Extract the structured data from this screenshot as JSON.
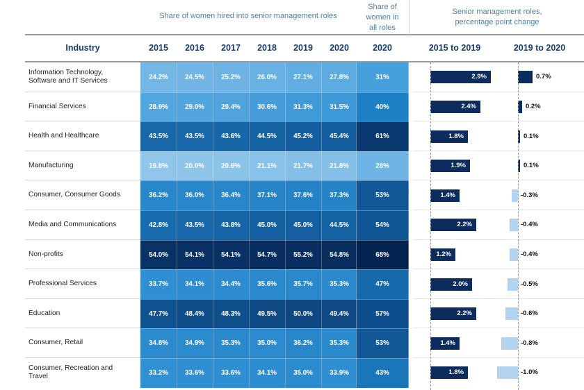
{
  "headers": {
    "share_hired": "Share of women hired into senior management roles",
    "share_all": [
      "Share of",
      "women in",
      "all roles"
    ],
    "pp_change": [
      "Senior management roles,",
      "percentage point change"
    ],
    "industry": "Industry",
    "years": [
      "2015",
      "2016",
      "2017",
      "2018",
      "2019",
      "2020"
    ],
    "all_year": "2020",
    "change_1": "2015 to 2019",
    "change_2": "2019 to 2020"
  },
  "colors": {
    "header_text": "#4f81a8",
    "bold_header": "#173c6c",
    "dark_bar": "#0b2c5c",
    "light_bar": "#b3d3ee"
  },
  "chart_data": {
    "type": "table",
    "rows": [
      {
        "industry": [
          "Information Technology,",
          "Software and IT Services"
        ],
        "values": [
          "24.2%",
          "24.5%",
          "25.2%",
          "26.0%",
          "27.1%",
          "27.8%"
        ],
        "all_roles": "31%",
        "change_2015_2019": 2.9,
        "change_2015_2019_label": "2.9%",
        "change_2019_2020": 0.7,
        "change_2019_2020_label": "0.7%"
      },
      {
        "industry": [
          "Financial Services"
        ],
        "values": [
          "28.9%",
          "29.0%",
          "29.4%",
          "30.6%",
          "31.3%",
          "31.5%"
        ],
        "all_roles": "40%",
        "change_2015_2019": 2.4,
        "change_2015_2019_label": "2.4%",
        "change_2019_2020": 0.2,
        "change_2019_2020_label": "0.2%"
      },
      {
        "industry": [
          "Health and Healthcare"
        ],
        "values": [
          "43.5%",
          "43.5%",
          "43.6%",
          "44.5%",
          "45.2%",
          "45.4%"
        ],
        "all_roles": "61%",
        "change_2015_2019": 1.8,
        "change_2015_2019_label": "1.8%",
        "change_2019_2020": 0.1,
        "change_2019_2020_label": "0.1%"
      },
      {
        "industry": [
          "Manufacturing"
        ],
        "values": [
          "19.8%",
          "20.0%",
          "20.6%",
          "21.1%",
          "21.7%",
          "21.8%"
        ],
        "all_roles": "28%",
        "change_2015_2019": 1.9,
        "change_2015_2019_label": "1.9%",
        "change_2019_2020": 0.1,
        "change_2019_2020_label": "0.1%"
      },
      {
        "industry": [
          "Consumer, Consumer Goods"
        ],
        "values": [
          "36.2%",
          "36.0%",
          "36.4%",
          "37.1%",
          "37.6%",
          "37.3%"
        ],
        "all_roles": "53%",
        "change_2015_2019": 1.4,
        "change_2015_2019_label": "1.4%",
        "change_2019_2020": -0.3,
        "change_2019_2020_label": "-0.3%"
      },
      {
        "industry": [
          "Media and Communications"
        ],
        "values": [
          "42.8%",
          "43.5%",
          "43.8%",
          "45.0%",
          "45.0%",
          "44.5%"
        ],
        "all_roles": "54%",
        "change_2015_2019": 2.2,
        "change_2015_2019_label": "2.2%",
        "change_2019_2020": -0.4,
        "change_2019_2020_label": "-0.4%"
      },
      {
        "industry": [
          "Non-profits"
        ],
        "values": [
          "54.0%",
          "54.1%",
          "54.1%",
          "54.7%",
          "55.2%",
          "54.8%"
        ],
        "all_roles": "68%",
        "change_2015_2019": 1.2,
        "change_2015_2019_label": "1.2%",
        "change_2019_2020": -0.4,
        "change_2019_2020_label": "-0.4%"
      },
      {
        "industry": [
          "Professional Services"
        ],
        "values": [
          "33.7%",
          "34.1%",
          "34.4%",
          "35.6%",
          "35.7%",
          "35.3%"
        ],
        "all_roles": "47%",
        "change_2015_2019": 2.0,
        "change_2015_2019_label": "2.0%",
        "change_2019_2020": -0.5,
        "change_2019_2020_label": "-0.5%"
      },
      {
        "industry": [
          "Education"
        ],
        "values": [
          "47.7%",
          "48.4%",
          "48.3%",
          "49.5%",
          "50.0%",
          "49.4%"
        ],
        "all_roles": "57%",
        "change_2015_2019": 2.2,
        "change_2015_2019_label": "2.2%",
        "change_2019_2020": -0.6,
        "change_2019_2020_label": "-0.6%"
      },
      {
        "industry": [
          "Consumer, Retail"
        ],
        "values": [
          "34.8%",
          "34.9%",
          "35.3%",
          "35.0%",
          "36.2%",
          "35.3%"
        ],
        "all_roles": "53%",
        "change_2015_2019": 1.4,
        "change_2015_2019_label": "1.4%",
        "change_2019_2020": -0.8,
        "change_2019_2020_label": "-0.8%"
      },
      {
        "industry": [
          "Consumer, Recreation and",
          "Travel"
        ],
        "values": [
          "33.2%",
          "33.6%",
          "33.6%",
          "34.1%",
          "35.0%",
          "33.9%"
        ],
        "all_roles": "43%",
        "change_2015_2019": 1.8,
        "change_2015_2019_label": "1.8%",
        "change_2019_2020": -1.0,
        "change_2019_2020_label": "-1.0%"
      }
    ]
  }
}
